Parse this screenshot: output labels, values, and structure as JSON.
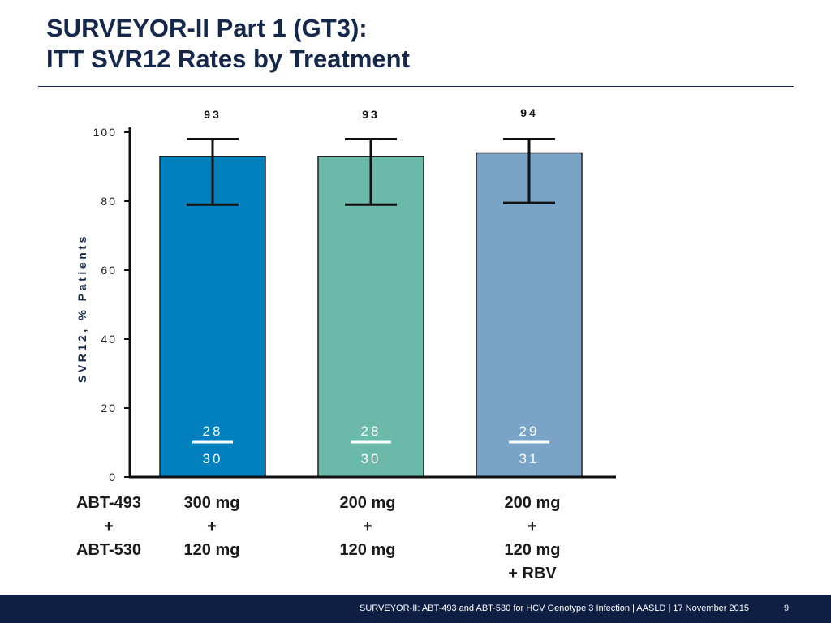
{
  "slide": {
    "title_line1": "SURVEYOR-II Part 1 (GT3):",
    "title_line2": "ITT SVR12 Rates by Treatment",
    "footer_text": "SURVEYOR-II: ABT-493 and ABT-530 for HCV Genotype 3 Infection   | AASLD | 17 November 2015",
    "page_number": "9",
    "row_header": "ABT-493\n+\nABT-530"
  },
  "chart_data": {
    "type": "bar",
    "ylabel": "SVR12, % Patients",
    "ylim": [
      0,
      100
    ],
    "yticks": [
      0,
      20,
      40,
      60,
      80,
      100
    ],
    "categories": [
      "300 mg\n+\n120 mg",
      "200 mg\n+\n120 mg",
      "200 mg\n+\n120 mg\n+ RBV"
    ],
    "values": [
      93,
      93,
      94
    ],
    "value_labels": [
      "93",
      "93",
      "94"
    ],
    "error_low": [
      79,
      79,
      79.5
    ],
    "error_high": [
      98,
      98,
      98
    ],
    "responders": [
      "28",
      "28",
      "29"
    ],
    "totals": [
      "30",
      "30",
      "31"
    ],
    "colors": [
      "#0080bd",
      "#6ab9a9",
      "#7aa3c8"
    ],
    "grid": false,
    "legend": "none"
  }
}
